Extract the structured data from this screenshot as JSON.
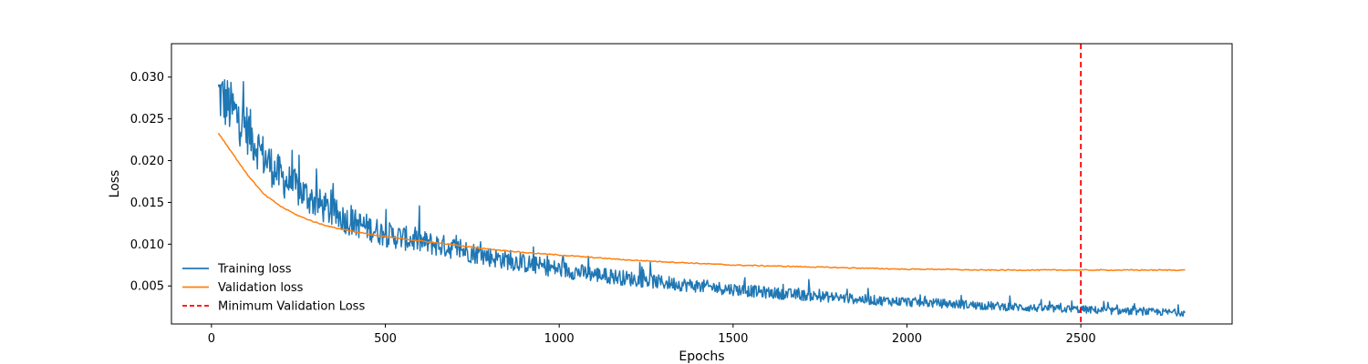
{
  "chart_data": {
    "type": "line",
    "title": "",
    "xlabel": "Epochs",
    "ylabel": "Loss",
    "xlim": [
      -115,
      2935
    ],
    "ylim": [
      0.00045,
      0.034
    ],
    "xticks": [
      0,
      500,
      1000,
      1500,
      2000,
      2500
    ],
    "yticks": [
      0.005,
      0.01,
      0.015,
      0.02,
      0.025,
      0.03
    ],
    "ytick_labels": [
      "0.005",
      "0.010",
      "0.015",
      "0.020",
      "0.025",
      "0.030"
    ],
    "grid": false,
    "legend": {
      "placement": "lower-left",
      "frame": false
    },
    "series": [
      {
        "name": "Training loss",
        "color": "#1f77b4",
        "style": "solid",
        "noisy": true,
        "x": [
          20,
          50,
          100,
          150,
          200,
          250,
          300,
          350,
          400,
          450,
          500,
          600,
          700,
          800,
          900,
          1000,
          1100,
          1200,
          1300,
          1400,
          1500,
          1600,
          1700,
          1800,
          1900,
          2000,
          2100,
          2200,
          2300,
          2400,
          2500,
          2600,
          2700,
          2800
        ],
        "y": [
          0.028,
          0.0265,
          0.024,
          0.0205,
          0.018,
          0.0165,
          0.015,
          0.0137,
          0.0127,
          0.012,
          0.0112,
          0.0103,
          0.0095,
          0.0085,
          0.0077,
          0.007,
          0.0064,
          0.0059,
          0.0054,
          0.005,
          0.0046,
          0.0042,
          0.0039,
          0.0036,
          0.0033,
          0.0031,
          0.0029,
          0.0027,
          0.0025,
          0.0023,
          0.0022,
          0.002,
          0.0019,
          0.0018
        ]
      },
      {
        "name": "Validation loss",
        "color": "#ff7f0e",
        "style": "solid",
        "noisy": false,
        "x": [
          20,
          50,
          100,
          150,
          200,
          250,
          300,
          350,
          400,
          450,
          500,
          600,
          700,
          800,
          900,
          1000,
          1100,
          1200,
          1300,
          1400,
          1500,
          1600,
          1700,
          1800,
          1900,
          2000,
          2100,
          2200,
          2300,
          2400,
          2500,
          2600,
          2700,
          2800
        ],
        "y": [
          0.0233,
          0.0215,
          0.0185,
          0.016,
          0.0145,
          0.0134,
          0.0126,
          0.012,
          0.0116,
          0.0112,
          0.0109,
          0.0104,
          0.0099,
          0.0094,
          0.009,
          0.0087,
          0.0084,
          0.0081,
          0.0079,
          0.0077,
          0.0075,
          0.0074,
          0.0073,
          0.0072,
          0.0071,
          0.007,
          0.007,
          0.0069,
          0.0069,
          0.0069,
          0.0069,
          0.0069,
          0.0069,
          0.0069
        ]
      }
    ],
    "vline": {
      "name": "Minimum Validation Loss",
      "x": 2500,
      "color": "#ff0000",
      "style": "dashed"
    }
  }
}
